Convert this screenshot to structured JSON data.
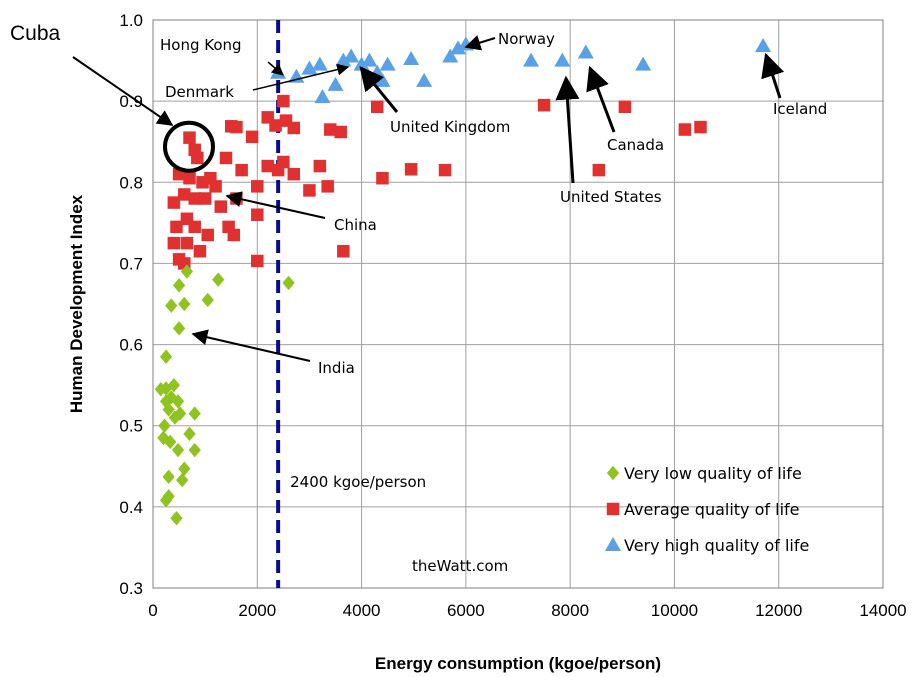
{
  "chart_data": {
    "type": "scatter",
    "title": "",
    "xlabel": "Energy consumption (kgoe/person)",
    "ylabel": "Human Development Index",
    "xlim": [
      0,
      14000
    ],
    "ylim": [
      0.3,
      1.0
    ],
    "x_ticks": [
      "0",
      "2000",
      "4000",
      "6000",
      "8000",
      "10000",
      "12000",
      "14000"
    ],
    "y_ticks": [
      "0.3",
      "0.4",
      "0.5",
      "0.6",
      "0.7",
      "0.8",
      "0.9",
      "1.0"
    ],
    "grid": true,
    "legend_position": "bottom-right",
    "threshold": {
      "x": 2400,
      "label": "2400 kgoe/person",
      "color": "#0a0a8c"
    },
    "watermark": "theWatt.com",
    "series": [
      {
        "name": "Very low quality of life",
        "marker": "diamond",
        "color": "#8fc31f",
        "points": [
          [
            250,
            0.546
          ],
          [
            150,
            0.545
          ],
          [
            400,
            0.55
          ],
          [
            250,
            0.53
          ],
          [
            350,
            0.535
          ],
          [
            480,
            0.53
          ],
          [
            300,
            0.52
          ],
          [
            520,
            0.515
          ],
          [
            420,
            0.51
          ],
          [
            220,
            0.5
          ],
          [
            200,
            0.485
          ],
          [
            330,
            0.48
          ],
          [
            800,
            0.515
          ],
          [
            700,
            0.49
          ],
          [
            800,
            0.47
          ],
          [
            480,
            0.47
          ],
          [
            600,
            0.447
          ],
          [
            300,
            0.437
          ],
          [
            560,
            0.433
          ],
          [
            300,
            0.413
          ],
          [
            250,
            0.408
          ],
          [
            450,
            0.386
          ],
          [
            250,
            0.585
          ],
          [
            500,
            0.62
          ],
          [
            350,
            0.648
          ],
          [
            600,
            0.65
          ],
          [
            500,
            0.673
          ],
          [
            1050,
            0.655
          ],
          [
            1250,
            0.68
          ],
          [
            650,
            0.69
          ],
          [
            2600,
            0.676
          ]
        ]
      },
      {
        "name": "Average quality of life",
        "marker": "square",
        "color": "#e03030",
        "points": [
          [
            700,
            0.855
          ],
          [
            800,
            0.84
          ],
          [
            850,
            0.83
          ],
          [
            1500,
            0.869
          ],
          [
            1600,
            0.868
          ],
          [
            1900,
            0.856
          ],
          [
            2200,
            0.88
          ],
          [
            2350,
            0.87
          ],
          [
            2500,
            0.9
          ],
          [
            2550,
            0.876
          ],
          [
            2700,
            0.867
          ],
          [
            3400,
            0.865
          ],
          [
            3600,
            0.862
          ],
          [
            4300,
            0.893
          ],
          [
            7500,
            0.895
          ],
          [
            9050,
            0.893
          ],
          [
            10200,
            0.865
          ],
          [
            10500,
            0.868
          ],
          [
            500,
            0.81
          ],
          [
            700,
            0.805
          ],
          [
            950,
            0.8
          ],
          [
            1100,
            0.805
          ],
          [
            1200,
            0.795
          ],
          [
            1400,
            0.83
          ],
          [
            1700,
            0.815
          ],
          [
            2000,
            0.795
          ],
          [
            2200,
            0.82
          ],
          [
            2400,
            0.815
          ],
          [
            2500,
            0.825
          ],
          [
            2700,
            0.81
          ],
          [
            3000,
            0.79
          ],
          [
            3200,
            0.82
          ],
          [
            3350,
            0.795
          ],
          [
            4400,
            0.805
          ],
          [
            4950,
            0.816
          ],
          [
            5600,
            0.815
          ],
          [
            8550,
            0.815
          ],
          [
            400,
            0.775
          ],
          [
            600,
            0.785
          ],
          [
            800,
            0.78
          ],
          [
            1000,
            0.78
          ],
          [
            1300,
            0.77
          ],
          [
            1600,
            0.78
          ],
          [
            2000,
            0.76
          ],
          [
            450,
            0.745
          ],
          [
            650,
            0.755
          ],
          [
            800,
            0.745
          ],
          [
            1050,
            0.735
          ],
          [
            1450,
            0.745
          ],
          [
            1550,
            0.735
          ],
          [
            400,
            0.725
          ],
          [
            650,
            0.725
          ],
          [
            900,
            0.715
          ],
          [
            500,
            0.705
          ],
          [
            600,
            0.7
          ],
          [
            2000,
            0.703
          ],
          [
            3650,
            0.715
          ]
        ]
      },
      {
        "name": "Very high quality of life",
        "marker": "triangle",
        "color": "#5aa0e6",
        "points": [
          [
            2400,
            0.935
          ],
          [
            2750,
            0.93
          ],
          [
            3000,
            0.94
          ],
          [
            3200,
            0.945
          ],
          [
            3250,
            0.905
          ],
          [
            3500,
            0.92
          ],
          [
            3650,
            0.95
          ],
          [
            3800,
            0.955
          ],
          [
            4000,
            0.945
          ],
          [
            4150,
            0.95
          ],
          [
            4300,
            0.935
          ],
          [
            4400,
            0.925
          ],
          [
            4500,
            0.945
          ],
          [
            4950,
            0.952
          ],
          [
            5200,
            0.925
          ],
          [
            5700,
            0.955
          ],
          [
            5850,
            0.965
          ],
          [
            6000,
            0.97
          ],
          [
            7250,
            0.95
          ],
          [
            7850,
            0.95
          ],
          [
            8300,
            0.96
          ],
          [
            9400,
            0.945
          ],
          [
            11700,
            0.968
          ]
        ]
      }
    ],
    "annotations": [
      {
        "label": "Hong Kong",
        "point": [
          2400,
          0.935
        ]
      },
      {
        "label": "Denmark",
        "point": [
          3800,
          0.945
        ]
      },
      {
        "label": "Norway",
        "point": [
          6000,
          0.97
        ]
      },
      {
        "label": "United Kingdom",
        "point": [
          3900,
          0.945
        ]
      },
      {
        "label": "Iceland",
        "point": [
          11700,
          0.968
        ]
      },
      {
        "label": "Canada",
        "point": [
          8300,
          0.96
        ]
      },
      {
        "label": "United States",
        "point": [
          7850,
          0.95
        ]
      },
      {
        "label": "China",
        "point": [
          1350,
          0.785
        ]
      },
      {
        "label": "India",
        "point": [
          800,
          0.615
        ]
      },
      {
        "label": "Cuba",
        "point": [
          700,
          0.85
        ]
      }
    ]
  }
}
